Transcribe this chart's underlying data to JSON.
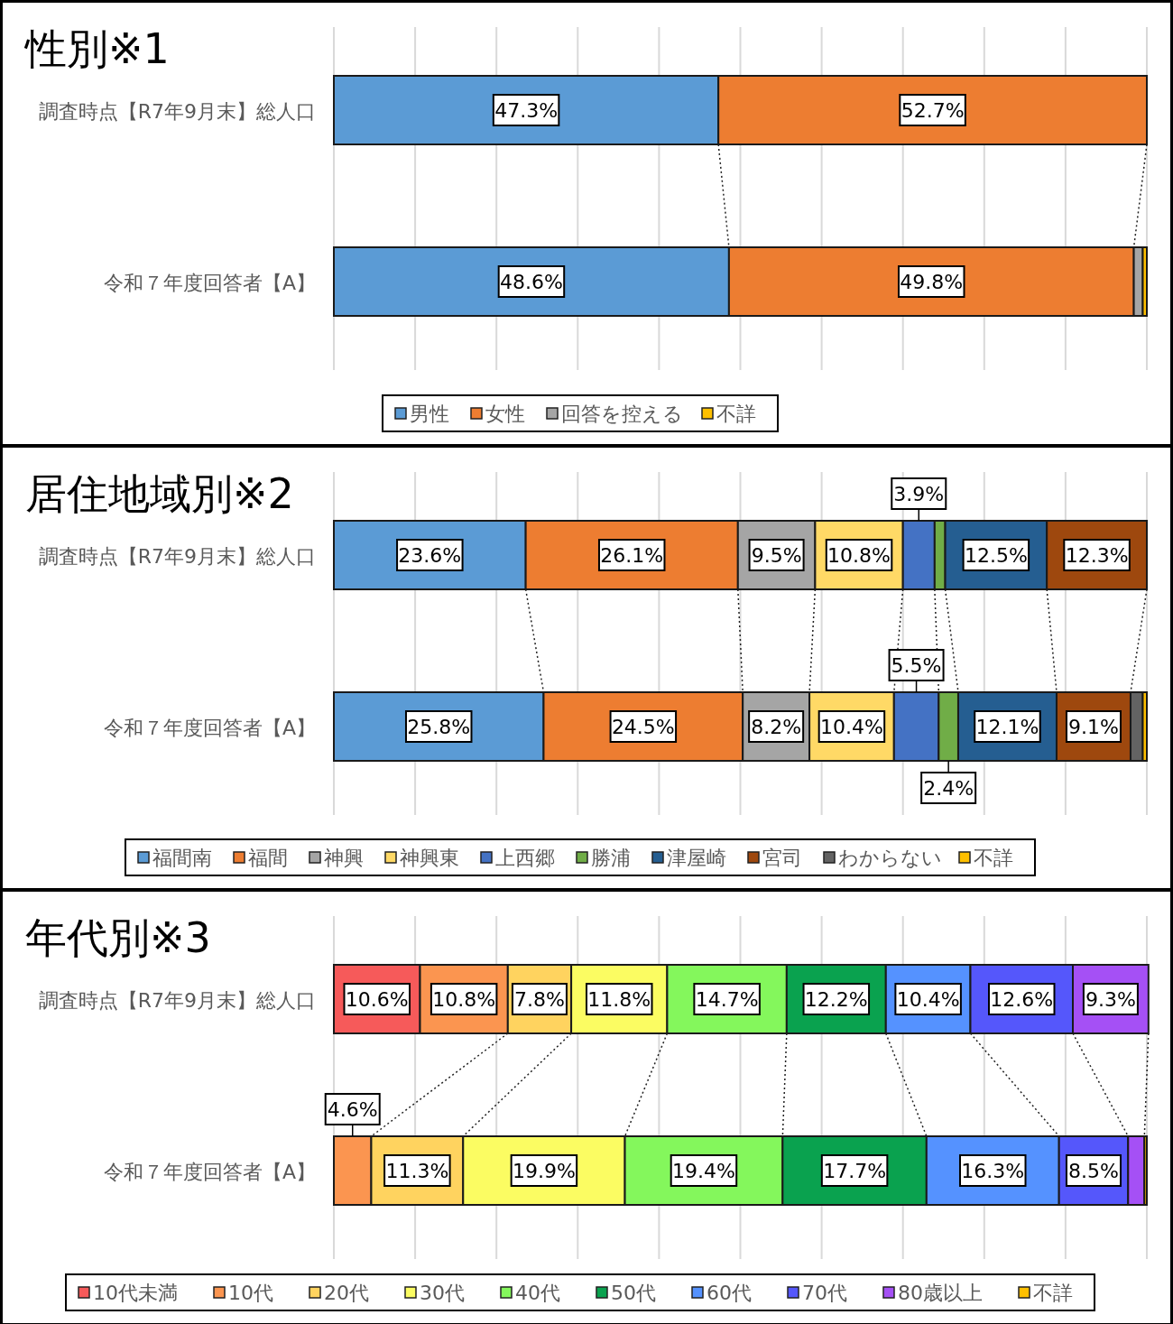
{
  "chart_data": [
    {
      "type": "bar",
      "orientation": "horizontal",
      "stacked": true,
      "title": "性別※1",
      "categories": [
        "調査時点【R7年9月末】総人口",
        "令和７年度回答者【A】"
      ],
      "xlim": [
        0,
        100
      ],
      "xticks": [
        0,
        10,
        20,
        30,
        40,
        50,
        60,
        70,
        80,
        90,
        100
      ],
      "tick_labels": "y",
      "grid": "x",
      "legend": "bottom",
      "series": [
        {
          "name": "男性",
          "color": "#5b9bd5",
          "values": [
            47.3,
            48.6
          ],
          "value_labels": [
            "47.3%",
            "48.6%"
          ]
        },
        {
          "name": "女性",
          "color": "#ed7d31",
          "values": [
            52.7,
            49.8
          ],
          "value_labels": [
            "52.7%",
            "49.8%"
          ]
        },
        {
          "name": "回答を控える",
          "color": "#a5a5a5",
          "values": [
            0,
            1.1
          ],
          "value_labels": [
            null,
            null
          ]
        },
        {
          "name": "不詳",
          "color": "#ffc000",
          "values": [
            0,
            0.5
          ],
          "value_labels": [
            null,
            null
          ]
        }
      ]
    },
    {
      "type": "bar",
      "orientation": "horizontal",
      "stacked": true,
      "title": "居住地域別※2",
      "categories": [
        "調査時点【R7年9月末】総人口",
        "令和７年度回答者【A】"
      ],
      "xlim": [
        0,
        100
      ],
      "xticks": [
        0,
        10,
        20,
        30,
        40,
        50,
        60,
        70,
        80,
        90,
        100
      ],
      "tick_labels": "y",
      "grid": "x",
      "legend": "bottom",
      "series": [
        {
          "name": "福間南",
          "color": "#5b9bd5",
          "values": [
            23.6,
            25.8
          ],
          "value_labels": [
            "23.6%",
            "25.8%"
          ]
        },
        {
          "name": "福間",
          "color": "#ed7d31",
          "values": [
            26.1,
            24.5
          ],
          "value_labels": [
            "26.1%",
            "24.5%"
          ]
        },
        {
          "name": "神興",
          "color": "#a5a5a5",
          "values": [
            9.5,
            8.2
          ],
          "value_labels": [
            "9.5%",
            "8.2%"
          ]
        },
        {
          "name": "神興東",
          "color": "#ffd966",
          "values": [
            10.8,
            10.4
          ],
          "value_labels": [
            "10.8%",
            "10.4%"
          ]
        },
        {
          "name": "上西郷",
          "color": "#4472c4",
          "values": [
            3.9,
            5.5
          ],
          "value_labels": [
            "3.9%",
            "5.5%"
          ]
        },
        {
          "name": "勝浦",
          "color": "#70ad47",
          "values": [
            1.3,
            2.4
          ],
          "value_labels": [
            null,
            "2.4%"
          ]
        },
        {
          "name": "津屋崎",
          "color": "#255e91",
          "values": [
            12.5,
            12.1
          ],
          "value_labels": [
            "12.5%",
            "12.1%"
          ]
        },
        {
          "name": "宮司",
          "color": "#9e480e",
          "values": [
            12.3,
            9.1
          ],
          "value_labels": [
            "12.3%",
            "9.1%"
          ]
        },
        {
          "name": "わからない",
          "color": "#636363",
          "values": [
            0,
            1.5
          ],
          "value_labels": [
            null,
            null
          ]
        },
        {
          "name": "不詳",
          "color": "#ffc000",
          "values": [
            0,
            0.5
          ],
          "value_labels": [
            null,
            null
          ]
        }
      ]
    },
    {
      "type": "bar",
      "orientation": "horizontal",
      "stacked": true,
      "title": "年代別※3",
      "categories": [
        "調査時点【R7年9月末】総人口",
        "令和７年度回答者【A】"
      ],
      "xlim": [
        0,
        100
      ],
      "xticks": [
        0,
        10,
        20,
        30,
        40,
        50,
        60,
        70,
        80,
        90,
        100
      ],
      "tick_labels": "y",
      "grid": "x",
      "legend": "bottom",
      "series": [
        {
          "name": "10代未満",
          "color": "#f65a5a",
          "values": [
            10.6,
            0
          ],
          "value_labels": [
            "10.6%",
            null
          ]
        },
        {
          "name": "10代",
          "color": "#fb9550",
          "values": [
            10.8,
            4.6
          ],
          "value_labels": [
            "10.8%",
            "4.6%"
          ]
        },
        {
          "name": "20代",
          "color": "#ffd35f",
          "values": [
            7.8,
            11.3
          ],
          "value_labels": [
            "7.8%",
            "11.3%"
          ]
        },
        {
          "name": "30代",
          "color": "#fbfc62",
          "values": [
            11.8,
            19.9
          ],
          "value_labels": [
            "11.8%",
            "19.9%"
          ]
        },
        {
          "name": "40代",
          "color": "#84f75c",
          "values": [
            14.7,
            19.4
          ],
          "value_labels": [
            "14.7%",
            "19.4%"
          ]
        },
        {
          "name": "50代",
          "color": "#0aa24f",
          "values": [
            12.2,
            17.7
          ],
          "value_labels": [
            "12.2%",
            "17.7%"
          ]
        },
        {
          "name": "60代",
          "color": "#5592ff",
          "values": [
            10.4,
            16.3
          ],
          "value_labels": [
            "10.4%",
            "16.3%"
          ]
        },
        {
          "name": "70代",
          "color": "#5557fb",
          "values": [
            12.6,
            8.5
          ],
          "value_labels": [
            "12.6%",
            "8.5%"
          ]
        },
        {
          "name": "80歳以上",
          "color": "#a550f5",
          "values": [
            9.3,
            2.0
          ],
          "value_labels": [
            "9.3%",
            null
          ]
        },
        {
          "name": "不詳",
          "color": "#ffc000",
          "values": [
            0,
            0.3
          ],
          "value_labels": [
            null,
            null
          ]
        }
      ]
    }
  ]
}
